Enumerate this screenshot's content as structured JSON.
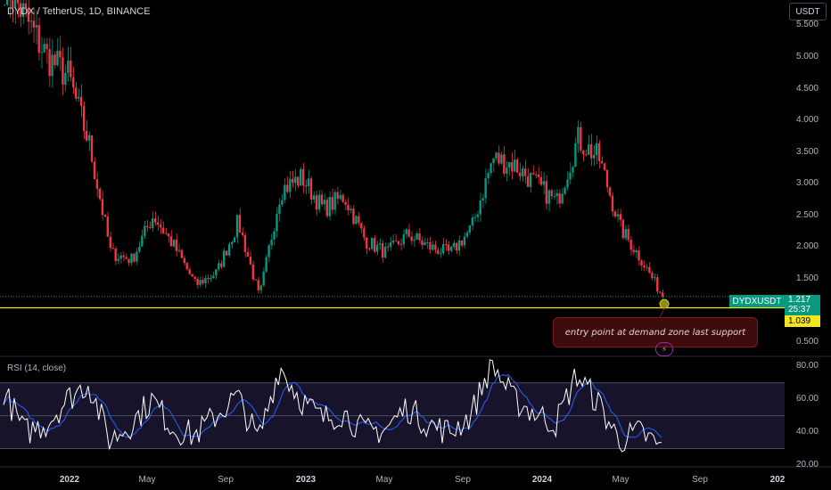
{
  "header": {
    "title": "DYDX / TetherUS, 1D, BINANCE",
    "currency_button": "USDT"
  },
  "price_axis": [
    "5.500",
    "5.000",
    "4.500",
    "4.000",
    "3.500",
    "3.000",
    "2.500",
    "2.000",
    "1.500",
    "0.500"
  ],
  "rsi_axis": [
    "80.00",
    "60.00",
    "40.00",
    "20.00"
  ],
  "time_axis": [
    {
      "label": "2022",
      "year": true
    },
    {
      "label": "May",
      "year": false
    },
    {
      "label": "Sep",
      "year": false
    },
    {
      "label": "2023",
      "year": true
    },
    {
      "label": "May",
      "year": false
    },
    {
      "label": "Sep",
      "year": false
    },
    {
      "label": "2024",
      "year": true
    },
    {
      "label": "May",
      "year": false
    },
    {
      "label": "Sep",
      "year": false
    },
    {
      "label": "202",
      "year": true
    }
  ],
  "symbol_tag": "DYDXUSDT",
  "price_tag": {
    "price": "1.217",
    "countdown": "25:37"
  },
  "line_tag": "1.039",
  "annotation": "entry point at demand zone last support",
  "rsi_label": "RSI (14, close)",
  "colors": {
    "up": "#089981",
    "down": "#f23645",
    "support_line": "#f5e71d",
    "rsi_line": "#ffffff",
    "rsi_ma": "#2962ff"
  },
  "icons": {
    "bolt": "lightning-icon"
  },
  "chart_data": {
    "type": "candlestick",
    "title": "DYDX / TetherUS, 1D, BINANCE",
    "x": [
      "2021-12",
      "2022-01",
      "2022-02",
      "2022-03",
      "2022-04",
      "2022-05",
      "2022-06",
      "2022-07",
      "2022-08",
      "2022-09",
      "2022-10",
      "2022-11",
      "2022-12",
      "2023-01",
      "2023-02",
      "2023-03",
      "2023-04",
      "2023-05",
      "2023-06",
      "2023-07",
      "2023-08",
      "2023-09",
      "2023-10",
      "2023-11",
      "2023-12",
      "2024-01",
      "2024-02",
      "2024-03",
      "2024-04",
      "2024-05",
      "2024-06",
      "2024-07"
    ],
    "close": [
      6.2,
      5.6,
      5.0,
      4.7,
      3.6,
      1.9,
      1.8,
      2.5,
      2.0,
      1.4,
      1.6,
      2.4,
      1.2,
      2.9,
      3.1,
      2.6,
      2.8,
      2.1,
      1.9,
      2.2,
      2.0,
      1.9,
      2.3,
      3.4,
      3.3,
      3.0,
      2.7,
      3.7,
      3.4,
      2.3,
      1.8,
      1.22
    ],
    "horizontal_line": 1.039,
    "last_price": 1.217,
    "y_range": [
      0.3,
      5.9
    ],
    "rsi": {
      "period": 14,
      "source": "close",
      "values": [
        65,
        40,
        45,
        60,
        70,
        35,
        45,
        60,
        42,
        38,
        50,
        62,
        35,
        80,
        60,
        48,
        52,
        40,
        42,
        55,
        45,
        40,
        50,
        82,
        60,
        52,
        45,
        75,
        58,
        35,
        40,
        30
      ],
      "y_range": [
        20,
        85
      ],
      "levels": [
        70,
        50,
        30
      ]
    }
  }
}
